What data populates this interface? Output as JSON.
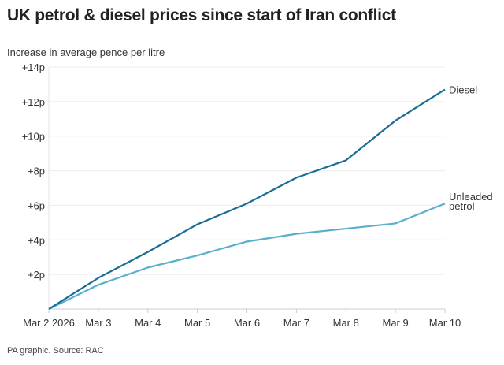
{
  "chart_data": {
    "type": "line",
    "title": "UK petrol & diesel prices since start of Iran conflict",
    "ylabel": "Increase in average pence per litre",
    "source": "PA graphic. Source: RAC",
    "categories": [
      "Mar 2 2026",
      "Mar 3",
      "Mar 4",
      "Mar 5",
      "Mar 6",
      "Mar 7",
      "Mar 8",
      "Mar 9",
      "Mar 10"
    ],
    "yticks": [
      2,
      4,
      6,
      8,
      10,
      12,
      14
    ],
    "ytick_labels": [
      "+2p",
      "+4p",
      "+6p",
      "+8p",
      "+10p",
      "+12p",
      "+14p"
    ],
    "ylim": [
      0,
      14
    ],
    "grid": true,
    "series": [
      {
        "name": "Diesel",
        "color": "#1a6e96",
        "values": [
          0,
          1.8,
          3.3,
          4.9,
          6.1,
          7.6,
          8.6,
          10.9,
          12.7
        ]
      },
      {
        "name": "Unleaded petrol",
        "color": "#5ab0cc",
        "values": [
          0,
          1.4,
          2.4,
          3.1,
          3.9,
          4.35,
          4.65,
          4.95,
          6.1
        ]
      }
    ]
  }
}
